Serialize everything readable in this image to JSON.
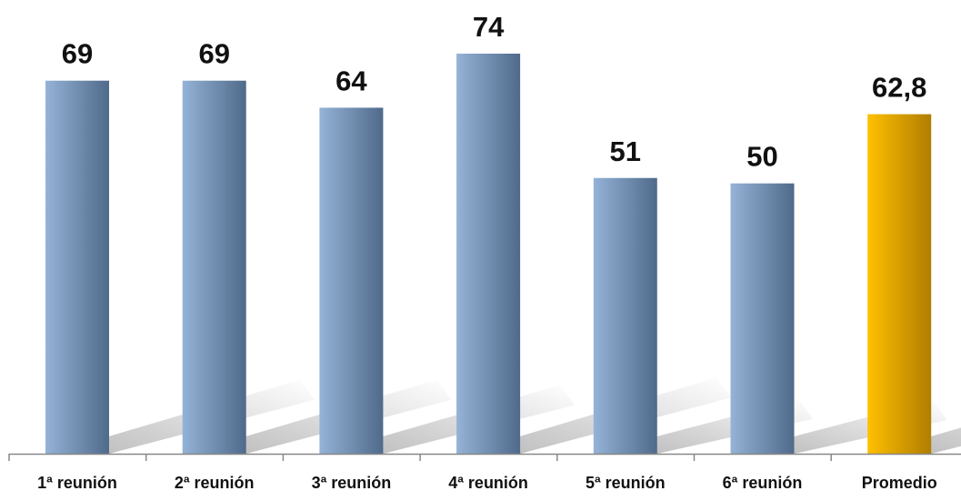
{
  "chart_data": {
    "type": "bar",
    "categories": [
      "1ª reunión",
      "2ª reunión",
      "3ª reunión",
      "4ª reunión",
      "5ª reunión",
      "6ª reunión",
      "Promedio"
    ],
    "values": [
      69,
      69,
      64,
      74,
      51,
      50,
      62.8
    ],
    "data_labels": [
      "69",
      "69",
      "64",
      "74",
      "51",
      "50",
      "62,8"
    ],
    "highlight_index": 6,
    "title": "",
    "xlabel": "",
    "ylabel": "",
    "ylim": [
      0,
      74
    ],
    "grid": false,
    "legend": "none",
    "colors": {
      "bar_light": "#95B3D7",
      "bar_dark": "#4F6A8A",
      "highlight_light": "#FFC000",
      "highlight_dark": "#B07D00",
      "axis": "#888888",
      "shadow": "#BDBDBD"
    }
  }
}
